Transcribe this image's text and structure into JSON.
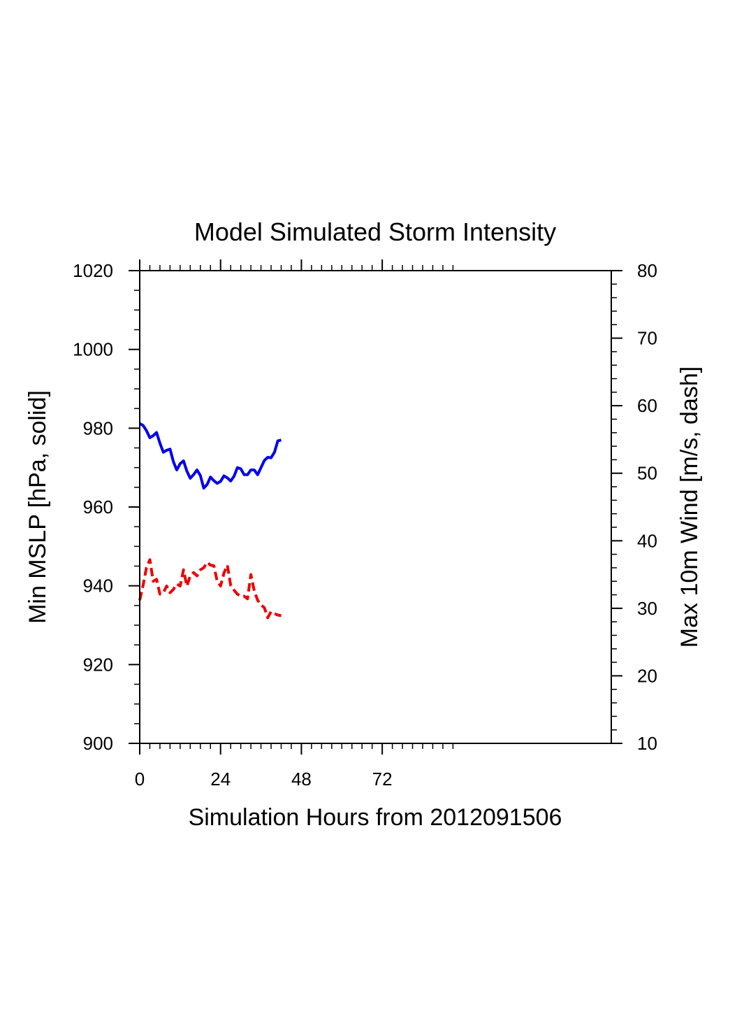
{
  "chart_data": {
    "type": "line",
    "title": "Model Simulated Storm Intensity",
    "xlabel": "Simulation Hours from 2012091506",
    "ylabel_left": "Min MSLP  [hPa, solid]",
    "ylabel_right": "Max 10m Wind  [m/s, dash]",
    "xlim": [
      0,
      140
    ],
    "ylim_left": [
      900,
      1020
    ],
    "ylim_right": [
      10,
      80
    ],
    "x_ticks": [
      0,
      24,
      48,
      72
    ],
    "x_tick_labels": [
      "0",
      "24",
      "48",
      "72"
    ],
    "y_ticks_left": [
      900,
      920,
      940,
      960,
      980,
      1000,
      1020
    ],
    "y_tick_labels_left": [
      "900",
      "920",
      "940",
      "960",
      "980",
      "1000",
      "1020"
    ],
    "y_ticks_right": [
      10,
      20,
      30,
      40,
      50,
      60,
      70,
      80
    ],
    "y_tick_labels_right": [
      "10",
      "20",
      "30",
      "40",
      "50",
      "60",
      "70",
      "80"
    ],
    "grid": false,
    "series": [
      {
        "axis": "left",
        "style": "solid",
        "color": "#0000ee",
        "x": [
          0,
          1,
          2,
          3,
          4,
          5,
          6,
          7,
          8,
          9,
          10,
          11,
          12,
          13,
          14,
          15,
          16,
          17,
          18,
          19,
          20,
          21,
          22,
          23,
          24,
          25,
          26,
          27,
          28,
          29,
          30,
          31,
          32,
          33,
          34,
          35,
          36,
          37,
          38,
          39,
          40,
          41,
          42
        ],
        "values": [
          981.2,
          980.7,
          979.4,
          977.6,
          978.1,
          978.9,
          976.2,
          973.9,
          974.4,
          974.7,
          971.5,
          969.4,
          971.0,
          971.7,
          969.1,
          967.3,
          968.2,
          969.4,
          968.0,
          964.8,
          965.7,
          967.6,
          966.7,
          966.0,
          966.5,
          967.9,
          967.4,
          966.6,
          967.8,
          970.0,
          969.7,
          968.2,
          968.2,
          969.4,
          969.4,
          968.2,
          970.0,
          971.8,
          972.6,
          972.5,
          973.9,
          976.8,
          977.0
        ]
      },
      {
        "axis": "right",
        "style": "dashed",
        "color": "#ee0000",
        "x": [
          0,
          1,
          2,
          3,
          4,
          5,
          6,
          7,
          8,
          9,
          10,
          11,
          12,
          13,
          14,
          15,
          16,
          17,
          18,
          19,
          20,
          21,
          22,
          23,
          24,
          25,
          26,
          27,
          28,
          29,
          30,
          31,
          32,
          33,
          34,
          35,
          36,
          37,
          38,
          39,
          40,
          41,
          42
        ],
        "values": [
          31.2,
          33.4,
          36.0,
          37.2,
          34.0,
          34.3,
          32.1,
          32.3,
          33.3,
          32.3,
          32.8,
          33.6,
          33.3,
          35.7,
          33.3,
          34.8,
          35.3,
          34.8,
          35.7,
          36.0,
          36.8,
          36.4,
          36.3,
          34.0,
          33.3,
          35.2,
          36.4,
          33.4,
          32.7,
          32.1,
          31.8,
          31.8,
          31.4,
          35.0,
          32.6,
          31.2,
          30.5,
          30.1,
          28.6,
          29.5,
          29.2,
          29.0,
          28.9
        ]
      }
    ]
  }
}
